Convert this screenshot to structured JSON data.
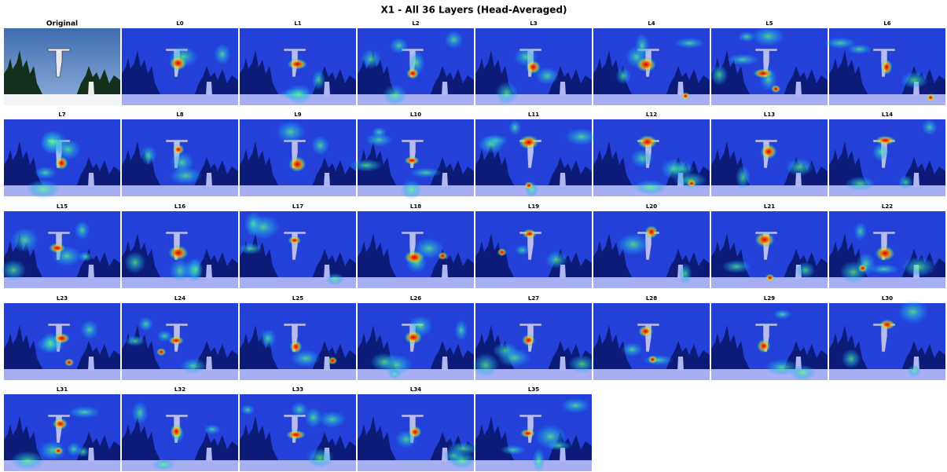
{
  "title": "X1 - All 36 Layers (Head-Averaged)",
  "panels": [
    "Original",
    "L0",
    "L1",
    "L2",
    "L3",
    "L4",
    "L5",
    "L6",
    "L7",
    "L8",
    "L9",
    "L10",
    "L11",
    "L12",
    "L13",
    "L14",
    "L15",
    "L16",
    "L17",
    "L18",
    "L19",
    "L20",
    "L21",
    "L22",
    "L23",
    "L24",
    "L25",
    "L26",
    "L27",
    "L28",
    "L29",
    "L30",
    "L31",
    "L32",
    "L33",
    "L34",
    "L35"
  ]
}
